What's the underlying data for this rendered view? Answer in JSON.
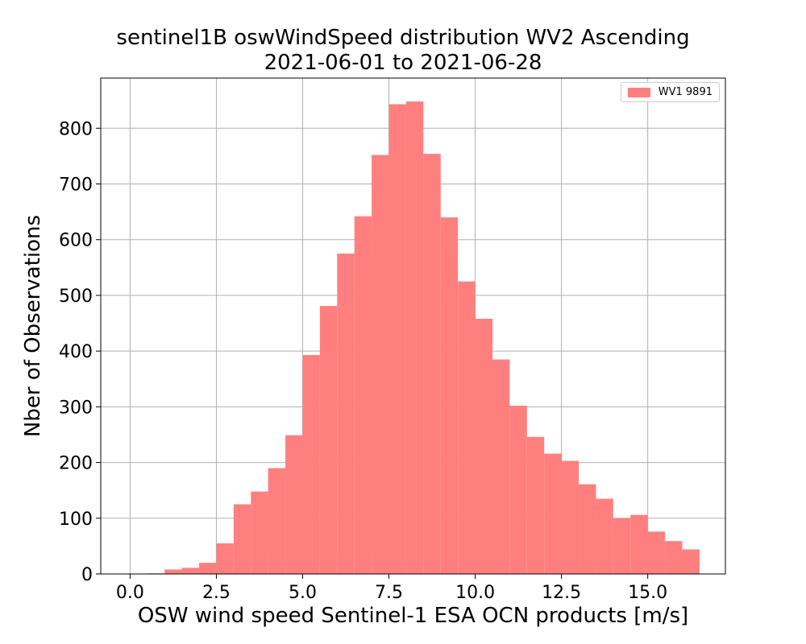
{
  "chart_data": {
    "type": "bar",
    "title": "sentinel1B oswWindSpeed distribution WV2 Ascending",
    "subtitle": "2021-06-01 to 2021-06-28",
    "xlabel": "OSW wind speed Sentinel-1 ESA OCN products [m/s]",
    "ylabel": "Nber of Observations",
    "xlim": [
      -0.85,
      17.25
    ],
    "ylim": [
      0,
      890
    ],
    "xticks": [
      0.0,
      2.5,
      5.0,
      7.5,
      10.0,
      12.5,
      15.0
    ],
    "xtick_labels": [
      "0.0",
      "2.5",
      "5.0",
      "7.5",
      "10.0",
      "12.5",
      "15.0"
    ],
    "yticks": [
      0,
      100,
      200,
      300,
      400,
      500,
      600,
      700,
      800
    ],
    "ytick_labels": [
      "0",
      "100",
      "200",
      "300",
      "400",
      "500",
      "600",
      "700",
      "800"
    ],
    "grid": true,
    "legend_position": "top-right",
    "bin_width": 0.5,
    "series": [
      {
        "name": "WV1 9891",
        "color": "#ff7f7f",
        "bin_starts": [
          0.5,
          1.0,
          1.5,
          2.0,
          2.5,
          3.0,
          3.5,
          4.0,
          4.5,
          5.0,
          5.5,
          6.0,
          6.5,
          7.0,
          7.5,
          8.0,
          8.5,
          9.0,
          9.5,
          10.0,
          10.5,
          11.0,
          11.5,
          12.0,
          12.5,
          13.0,
          13.5,
          14.0,
          14.5,
          15.0,
          15.5,
          16.0
        ],
        "values": [
          1,
          8,
          11,
          20,
          55,
          125,
          148,
          190,
          249,
          393,
          481,
          575,
          642,
          752,
          843,
          848,
          754,
          640,
          525,
          458,
          385,
          302,
          246,
          216,
          203,
          161,
          135,
          100,
          106,
          76,
          59,
          44
        ]
      }
    ]
  }
}
